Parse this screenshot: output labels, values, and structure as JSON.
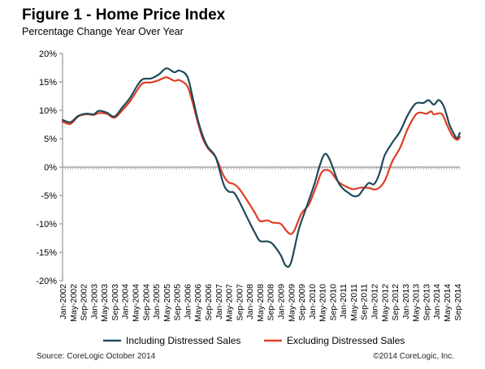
{
  "colors": {
    "including": "#1e4a5a",
    "excluding": "#e03c26",
    "axis": "#7f7f7f"
  },
  "chart_data": {
    "type": "line",
    "title": "Figure 1 - Home Price Index",
    "subtitle": "Percentage Change Year Over Year",
    "ylim": [
      -20,
      20
    ],
    "yticks": [
      20,
      15,
      10,
      5,
      0,
      -5,
      -10,
      -15,
      -20
    ],
    "ytick_labels": [
      "20%",
      "15%",
      "10%",
      "5%",
      "0%",
      "-5%",
      "-10%",
      "-15%",
      "-20%"
    ],
    "x_start": "2002-01",
    "x_end": "2014-10",
    "xtick_labels": [
      "Jan-2002",
      "May-2002",
      "Sep-2002",
      "Jan-2003",
      "May-2003",
      "Sep-2003",
      "Jan-2004",
      "May-2004",
      "Sep-2004",
      "Jan-2005",
      "May-2005",
      "Sep-2005",
      "Jan-2006",
      "May-2006",
      "Sep-2006",
      "Jan-2007",
      "May-2007",
      "Sep-2007",
      "Jan-2008",
      "May-2008",
      "Sep-2008",
      "Jan-2009",
      "May-2009",
      "Sep-2009",
      "Jan-2010",
      "May-2010",
      "Sep-2010",
      "Jan-2011",
      "May-2011",
      "Sep-2011",
      "Jan-2012",
      "May-2012",
      "Sep-2012",
      "Jan-2013",
      "May-2013",
      "Sep-2013",
      "Jan-2014",
      "May-2014",
      "Sep-2014"
    ],
    "legend_position": "bottom",
    "grid": false,
    "series": [
      {
        "name": "Including Distressed Sales",
        "points": [
          [
            "2002-01",
            8.3
          ],
          [
            "2002-04",
            7.9
          ],
          [
            "2002-07",
            9.0
          ],
          [
            "2002-10",
            9.4
          ],
          [
            "2003-01",
            9.3
          ],
          [
            "2003-03",
            9.9
          ],
          [
            "2003-06",
            9.6
          ],
          [
            "2003-09",
            8.9
          ],
          [
            "2003-12",
            10.5
          ],
          [
            "2004-03",
            12.2
          ],
          [
            "2004-06",
            14.5
          ],
          [
            "2004-08",
            15.5
          ],
          [
            "2004-11",
            15.6
          ],
          [
            "2005-02",
            16.3
          ],
          [
            "2005-05",
            17.4
          ],
          [
            "2005-08",
            16.7
          ],
          [
            "2005-10",
            17.0
          ],
          [
            "2006-01",
            16.0
          ],
          [
            "2006-03",
            12.5
          ],
          [
            "2006-05",
            8.5
          ],
          [
            "2006-07",
            5.5
          ],
          [
            "2006-09",
            3.5
          ],
          [
            "2006-12",
            1.7
          ],
          [
            "2007-03",
            -3.0
          ],
          [
            "2007-05",
            -4.3
          ],
          [
            "2007-07",
            -4.5
          ],
          [
            "2007-09",
            -6.0
          ],
          [
            "2007-12",
            -8.8
          ],
          [
            "2008-03",
            -11.5
          ],
          [
            "2008-05",
            -13.0
          ],
          [
            "2008-08",
            -13.1
          ],
          [
            "2008-10",
            -13.6
          ],
          [
            "2009-01",
            -15.5
          ],
          [
            "2009-03",
            -17.4
          ],
          [
            "2009-05",
            -16.8
          ],
          [
            "2009-08",
            -11.0
          ],
          [
            "2009-11",
            -7.0
          ],
          [
            "2010-02",
            -3.0
          ],
          [
            "2010-04",
            0.2
          ],
          [
            "2010-06",
            2.3
          ],
          [
            "2010-08",
            1.2
          ],
          [
            "2010-11",
            -2.5
          ],
          [
            "2011-01",
            -3.8
          ],
          [
            "2011-03",
            -4.5
          ],
          [
            "2011-05",
            -5.1
          ],
          [
            "2011-07",
            -5.0
          ],
          [
            "2011-09",
            -3.8
          ],
          [
            "2011-11",
            -2.8
          ],
          [
            "2012-01",
            -3.0
          ],
          [
            "2012-03",
            -1.2
          ],
          [
            "2012-05",
            2.0
          ],
          [
            "2012-08",
            4.3
          ],
          [
            "2012-11",
            6.3
          ],
          [
            "2013-02",
            9.2
          ],
          [
            "2013-05",
            11.2
          ],
          [
            "2013-08",
            11.3
          ],
          [
            "2013-10",
            11.8
          ],
          [
            "2013-12",
            11.0
          ],
          [
            "2014-02",
            11.8
          ],
          [
            "2014-04",
            10.5
          ],
          [
            "2014-06",
            7.5
          ],
          [
            "2014-08",
            5.6
          ],
          [
            "2014-09",
            5.1
          ],
          [
            "2014-10",
            6.0
          ]
        ]
      },
      {
        "name": "Excluding Distressed Sales",
        "points": [
          [
            "2002-01",
            8.0
          ],
          [
            "2002-04",
            7.6
          ],
          [
            "2002-07",
            8.9
          ],
          [
            "2002-10",
            9.3
          ],
          [
            "2003-01",
            9.2
          ],
          [
            "2003-03",
            9.5
          ],
          [
            "2003-06",
            9.4
          ],
          [
            "2003-09",
            8.7
          ],
          [
            "2003-12",
            10.0
          ],
          [
            "2004-03",
            11.6
          ],
          [
            "2004-06",
            13.7
          ],
          [
            "2004-08",
            14.8
          ],
          [
            "2004-11",
            14.9
          ],
          [
            "2005-02",
            15.3
          ],
          [
            "2005-05",
            15.8
          ],
          [
            "2005-08",
            15.2
          ],
          [
            "2005-10",
            15.3
          ],
          [
            "2006-01",
            14.3
          ],
          [
            "2006-03",
            11.5
          ],
          [
            "2006-05",
            8.0
          ],
          [
            "2006-07",
            5.0
          ],
          [
            "2006-09",
            3.3
          ],
          [
            "2006-12",
            1.7
          ],
          [
            "2007-03",
            -1.5
          ],
          [
            "2007-05",
            -2.7
          ],
          [
            "2007-07",
            -3.0
          ],
          [
            "2007-09",
            -3.8
          ],
          [
            "2007-12",
            -5.8
          ],
          [
            "2008-03",
            -8.0
          ],
          [
            "2008-05",
            -9.5
          ],
          [
            "2008-08",
            -9.4
          ],
          [
            "2008-10",
            -9.8
          ],
          [
            "2009-01",
            -10.0
          ],
          [
            "2009-04",
            -11.6
          ],
          [
            "2009-06",
            -11.4
          ],
          [
            "2009-09",
            -8.2
          ],
          [
            "2009-12",
            -6.5
          ],
          [
            "2010-03",
            -3.0
          ],
          [
            "2010-05",
            -0.8
          ],
          [
            "2010-08",
            -0.7
          ],
          [
            "2010-11",
            -2.5
          ],
          [
            "2011-02",
            -3.4
          ],
          [
            "2011-05",
            -3.9
          ],
          [
            "2011-08",
            -3.6
          ],
          [
            "2011-11",
            -3.7
          ],
          [
            "2012-02",
            -3.9
          ],
          [
            "2012-05",
            -2.5
          ],
          [
            "2012-08",
            1.0
          ],
          [
            "2012-11",
            3.4
          ],
          [
            "2013-02",
            6.8
          ],
          [
            "2013-05",
            9.2
          ],
          [
            "2013-07",
            9.6
          ],
          [
            "2013-09",
            9.4
          ],
          [
            "2013-11",
            9.8
          ],
          [
            "2013-12",
            9.3
          ],
          [
            "2014-03",
            9.4
          ],
          [
            "2014-05",
            7.5
          ],
          [
            "2014-07",
            5.6
          ],
          [
            "2014-09",
            4.8
          ],
          [
            "2014-10",
            5.3
          ]
        ]
      }
    ]
  },
  "footer": {
    "source": "Source: CoreLogic  October 2014",
    "copyright": "©2014 CoreLogic, Inc."
  }
}
